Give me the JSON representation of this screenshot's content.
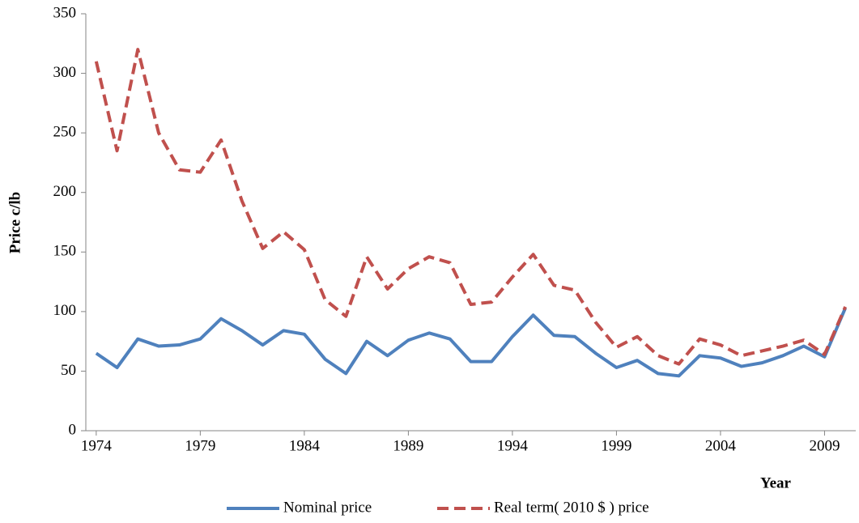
{
  "chart_data": {
    "type": "line",
    "y_label": "Price c/lb",
    "x_label": "Year",
    "x": [
      1974,
      1975,
      1976,
      1977,
      1978,
      1979,
      1980,
      1981,
      1982,
      1983,
      1984,
      1985,
      1986,
      1987,
      1988,
      1989,
      1990,
      1991,
      1992,
      1993,
      1994,
      1995,
      1996,
      1997,
      1998,
      1999,
      2000,
      2001,
      2002,
      2003,
      2004,
      2005,
      2006,
      2007,
      2008,
      2009,
      2010
    ],
    "series": [
      {
        "name": "Nominal price",
        "color": "#4f81bd",
        "dash": "solid",
        "values": [
          65,
          53,
          77,
          71,
          72,
          77,
          94,
          84,
          72,
          84,
          81,
          60,
          48,
          75,
          63,
          76,
          82,
          77,
          58,
          58,
          79,
          97,
          80,
          79,
          65,
          53,
          59,
          48,
          46,
          63,
          61,
          54,
          57,
          63,
          71,
          62,
          103
        ]
      },
      {
        "name": "Real term( 2010 $ ) price",
        "color": "#c0504d",
        "dash": "dashed",
        "values": [
          310,
          235,
          320,
          250,
          219,
          217,
          244,
          193,
          153,
          167,
          152,
          110,
          96,
          146,
          119,
          136,
          146,
          141,
          106,
          108,
          129,
          148,
          122,
          118,
          91,
          70,
          79,
          63,
          56,
          77,
          72,
          63,
          67,
          71,
          76,
          64,
          104
        ]
      }
    ],
    "xlim": [
      1973.5,
      2010.5
    ],
    "xticks": [
      1974,
      1979,
      1984,
      1989,
      1994,
      1999,
      2004,
      2009
    ],
    "ylim": [
      0,
      350
    ],
    "yticks": [
      0,
      50,
      100,
      150,
      200,
      250,
      300,
      350
    ],
    "grid": false,
    "legend": "bottom"
  }
}
